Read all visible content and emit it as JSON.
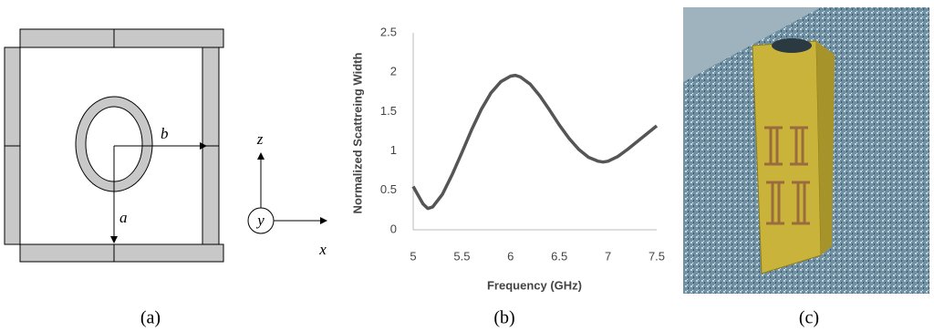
{
  "chart_data": {
    "type": "line",
    "x_label": "Frequency (GHz)",
    "y_label": "Normalized Scattreing Width",
    "x": [
      5,
      5.1,
      5.15,
      5.2,
      5.3,
      5.4,
      5.5,
      5.6,
      5.7,
      5.8,
      5.9,
      6.0,
      6.05,
      6.1,
      6.2,
      6.3,
      6.4,
      6.5,
      6.6,
      6.7,
      6.8,
      6.9,
      6.95,
      7.0,
      7.1,
      7.2,
      7.3,
      7.4,
      7.5
    ],
    "series": [
      {
        "color": "#555555",
        "values": [
          0.55,
          0.33,
          0.27,
          0.29,
          0.45,
          0.7,
          0.98,
          1.27,
          1.53,
          1.74,
          1.88,
          1.95,
          1.96,
          1.94,
          1.85,
          1.7,
          1.52,
          1.33,
          1.16,
          1.02,
          0.92,
          0.87,
          0.86,
          0.87,
          0.93,
          1.02,
          1.12,
          1.22,
          1.32
        ]
      }
    ],
    "xlim": [
      5,
      7.5
    ],
    "xticks": [
      5,
      5.5,
      6,
      6.5,
      7,
      7.5
    ],
    "ylim": [
      0,
      2.5
    ],
    "yticks": [
      0,
      0.5,
      1,
      1.5,
      2,
      2.5
    ],
    "grid": false
  },
  "panels": {
    "a": "(a)",
    "b": "(b)",
    "c": "(c)"
  },
  "diagram": {
    "a": "a",
    "b": "b",
    "x": "x",
    "y": "y",
    "z": "z"
  }
}
